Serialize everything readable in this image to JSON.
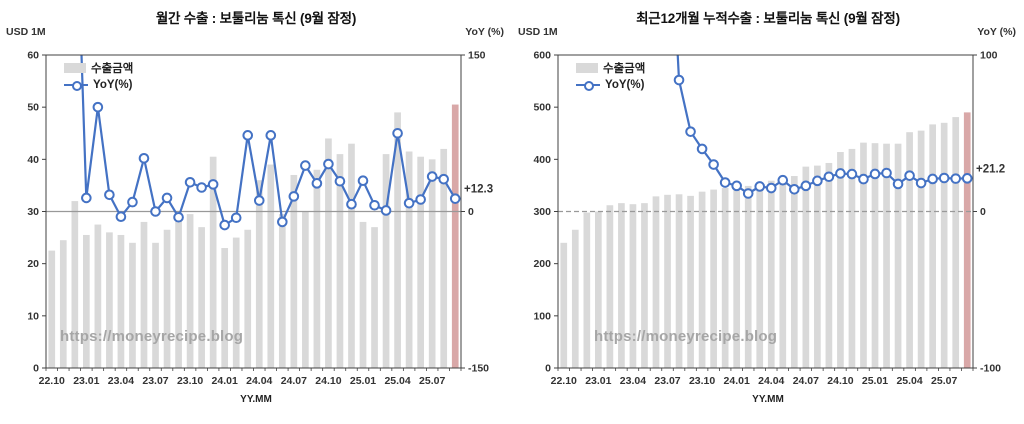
{
  "colors": {
    "bar": "#d9d9d9",
    "bar_highlight": "#d9a8a8",
    "line": "#4472c4",
    "marker_fill": "#ffffff",
    "annotation": "#ff0000",
    "watermark": "#a6a6a6",
    "axis_text": "#333333",
    "plot_border": "#404040",
    "zero_line": "#999999"
  },
  "chart_data": [
    {
      "type": "bar+line",
      "title": "월간 수출 : 보툴리눔 톡신 (9월 잠정)",
      "y_unit": "USD 1M",
      "y2_unit": "YoY (%)",
      "xlabel": "YY.MM",
      "legend": [
        "수출금액",
        "YoY(%)"
      ],
      "watermark": "https://moneyrecipe.blog",
      "annotation": "+12.3",
      "ylim": [
        0,
        60
      ],
      "yticks": [
        0,
        10,
        20,
        30,
        40,
        50,
        60
      ],
      "y2lim": [
        -150,
        150
      ],
      "y2ticks": [
        150,
        0,
        -150
      ],
      "zero_line_style": "solid",
      "grid": "off",
      "legend_position": "top-left-inside",
      "categories": [
        "22.10",
        "22.11",
        "22.12",
        "23.01",
        "23.02",
        "23.03",
        "23.04",
        "23.05",
        "23.06",
        "23.07",
        "23.08",
        "23.09",
        "23.10",
        "23.11",
        "23.12",
        "24.01",
        "24.02",
        "24.03",
        "24.04",
        "24.05",
        "24.06",
        "24.07",
        "24.08",
        "24.09",
        "24.10",
        "24.11",
        "24.12",
        "25.01",
        "25.02",
        "25.03",
        "25.04",
        "25.05",
        "25.06",
        "25.07",
        "25.08",
        "25.09"
      ],
      "xtick_labels": [
        "22.10",
        "23.01",
        "23.04",
        "23.07",
        "23.10",
        "24.01",
        "24.04",
        "24.07",
        "24.10",
        "25.01",
        "25.04",
        "25.07"
      ],
      "series": [
        {
          "name": "수출금액",
          "axis": "left",
          "values": [
            22.5,
            24.5,
            32,
            25.5,
            27.5,
            26,
            25.5,
            24,
            28,
            24,
            26.5,
            29,
            29.5,
            27,
            40.5,
            23,
            25,
            26.5,
            36,
            39,
            29.5,
            37,
            30,
            38,
            44,
            41,
            43,
            28,
            27,
            41,
            49,
            41.5,
            40.5,
            40,
            42,
            50.5
          ]
        },
        {
          "name": "YoY(%)",
          "axis": "right",
          "values": [
            null,
            null,
            null,
            13,
            100,
            16,
            -5,
            9,
            51,
            0,
            13,
            -5.5,
            28,
            23,
            26,
            -13,
            -6,
            73,
            10.5,
            73,
            -10,
            14.5,
            44,
            27,
            45.5,
            29,
            7,
            29.5,
            6,
            1,
            75,
            8,
            11.5,
            33.5,
            31,
            12.3
          ]
        }
      ],
      "highlight_last_bar": true
    },
    {
      "type": "bar+line",
      "title": "최근12개월 누적수출 : 보툴리눔 톡신 (9월 잠정)",
      "y_unit": "USD 1M",
      "y2_unit": "YoY (%)",
      "xlabel": "YY.MM",
      "legend": [
        "수출금액",
        "YoY(%)"
      ],
      "watermark": "https://moneyrecipe.blog",
      "annotation": "+21.2",
      "ylim": [
        0,
        600
      ],
      "yticks": [
        0,
        100,
        200,
        300,
        400,
        500,
        600
      ],
      "y2lim": [
        -100,
        100
      ],
      "y2ticks": [
        100,
        0,
        -100
      ],
      "zero_line_style": "dashed",
      "grid": "off",
      "legend_position": "top-left-inside",
      "categories": [
        "22.10",
        "22.11",
        "22.12",
        "23.01",
        "23.02",
        "23.03",
        "23.04",
        "23.05",
        "23.06",
        "23.07",
        "23.08",
        "23.09",
        "23.10",
        "23.11",
        "23.12",
        "24.01",
        "24.02",
        "24.03",
        "24.04",
        "24.05",
        "24.06",
        "24.07",
        "24.08",
        "24.09",
        "24.10",
        "24.11",
        "24.12",
        "25.01",
        "25.02",
        "25.03",
        "25.04",
        "25.05",
        "25.06",
        "25.07",
        "25.08",
        "25.09"
      ],
      "xtick_labels": [
        "22.10",
        "23.01",
        "23.04",
        "23.07",
        "23.10",
        "24.01",
        "24.04",
        "24.07",
        "24.10",
        "25.01",
        "25.04",
        "25.07"
      ],
      "series": [
        {
          "name": "수출금액",
          "axis": "left",
          "values": [
            240,
            265,
            298,
            300,
            312,
            316,
            314,
            316,
            329,
            332,
            333,
            330,
            338,
            342,
            345,
            346,
            349,
            354,
            359,
            364,
            368,
            386,
            388,
            393,
            414,
            420,
            432,
            431,
            430,
            430,
            452,
            455,
            467,
            470,
            481,
            490
          ]
        },
        {
          "name": "YoY(%)",
          "axis": "right",
          "values": [
            null,
            null,
            null,
            null,
            null,
            null,
            null,
            null,
            null,
            null,
            84,
            51,
            40,
            30,
            18.5,
            16.4,
            11.5,
            16,
            15,
            20,
            14.2,
            16.4,
            19.6,
            22.2,
            24.3,
            23.9,
            20.7,
            24,
            24.6,
            17.6,
            22.9,
            18.2,
            20.8,
            21.4,
            21,
            21.2
          ]
        }
      ],
      "highlight_last_bar": true
    }
  ]
}
